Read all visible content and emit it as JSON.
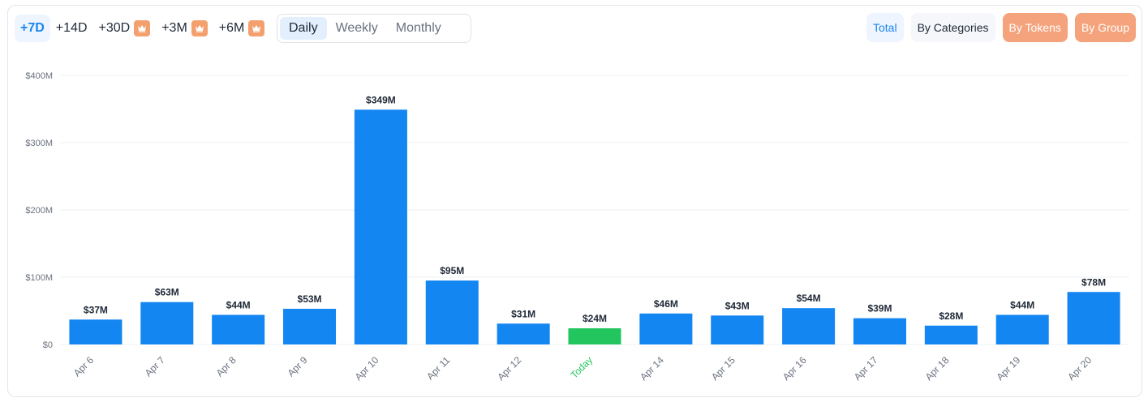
{
  "ranges": [
    {
      "label": "+7D",
      "active": true,
      "premium": false
    },
    {
      "label": "+14D",
      "active": false,
      "premium": false
    },
    {
      "label": "+30D",
      "active": false,
      "premium": true
    },
    {
      "label": "+3M",
      "active": false,
      "premium": true
    },
    {
      "label": "+6M",
      "active": false,
      "premium": true
    }
  ],
  "periods": [
    {
      "label": "Daily",
      "active": true
    },
    {
      "label": "Weekly",
      "active": false
    },
    {
      "label": "Monthly",
      "active": false
    }
  ],
  "views": [
    {
      "label": "Total",
      "style": "active"
    },
    {
      "label": "By Categories",
      "style": "default"
    },
    {
      "label": "By Tokens",
      "style": "premium"
    },
    {
      "label": "By Group",
      "style": "premium"
    }
  ],
  "colors": {
    "bar": "#1386f2",
    "today_bar": "#22c55e",
    "accent": "#1a86f0",
    "premium": "#f4a37c"
  },
  "chart_data": {
    "type": "bar",
    "categories": [
      "Apr 6",
      "Apr 7",
      "Apr 8",
      "Apr 9",
      "Apr 10",
      "Apr 11",
      "Apr 12",
      "Today",
      "Apr 14",
      "Apr 15",
      "Apr 16",
      "Apr 17",
      "Apr 18",
      "Apr 19",
      "Apr 20"
    ],
    "values": [
      37,
      63,
      44,
      53,
      349,
      95,
      31,
      24,
      46,
      43,
      54,
      39,
      28,
      44,
      78
    ],
    "value_labels": [
      "$37M",
      "$63M",
      "$44M",
      "$53M",
      "$349M",
      "$95M",
      "$31M",
      "$24M",
      "$46M",
      "$43M",
      "$54M",
      "$39M",
      "$28M",
      "$44M",
      "$78M"
    ],
    "highlight_category": "Today",
    "ylim": [
      0,
      400
    ],
    "yticks": [
      0,
      100,
      200,
      300,
      400
    ],
    "ytick_labels": [
      "$0",
      "$100M",
      "$200M",
      "$300M",
      "$400M"
    ],
    "unit": "millions USD",
    "grid": true,
    "title": "",
    "xlabel": "",
    "ylabel": ""
  }
}
